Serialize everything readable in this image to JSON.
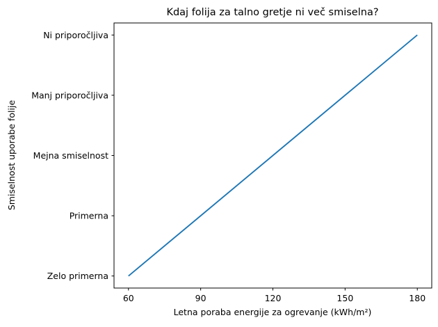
{
  "chart_data": {
    "type": "line",
    "title": "Kdaj folija za talno gretje ni več smiselna?",
    "xlabel": "Letna poraba energije za ogrevanje (kWh/m²)",
    "ylabel": "Smiselnost uporabe folije",
    "x": [
      60,
      90,
      120,
      150,
      180
    ],
    "y_categories": [
      "Zelo primerna",
      "Primerna",
      "Mejna smiselnost",
      "Manj priporočljiva",
      "Ni priporočljiva"
    ],
    "y_indices": [
      0,
      1,
      2,
      3,
      4
    ],
    "x_ticks": [
      60,
      90,
      120,
      150,
      180
    ],
    "xlim": [
      54,
      186
    ],
    "ylim": [
      -0.2,
      4.2
    ],
    "grid": false,
    "legend": null,
    "line_color": "#1f77b4",
    "background_color": "#ffffff",
    "spine_color": "#000000"
  }
}
